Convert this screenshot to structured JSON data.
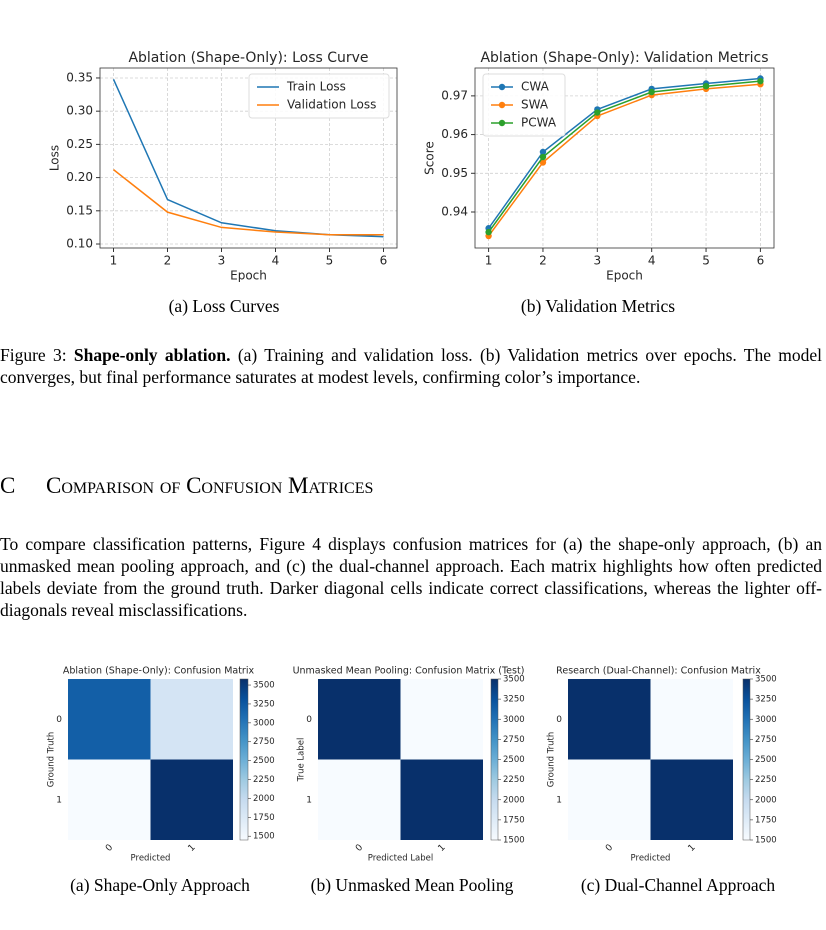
{
  "figure3": {
    "subcaptions": [
      "(a)  Loss Curves",
      "(b)  Validation Metrics"
    ],
    "caption": {
      "label": "Figure 3:",
      "bold": "Shape-only ablation.",
      "text": "(a) Training and validation loss. (b) Validation metrics over epochs. The model converges, but final performance saturates at modest levels, confirming color’s importance."
    }
  },
  "section": {
    "number": "C",
    "title": "Comparison of Confusion Matrices"
  },
  "paragraph": "To compare classification patterns, Figure 4 displays confusion matrices for (a) the shape-only approach, (b) an unmasked mean pooling approach, and (c) the dual-channel approach. Each matrix highlights how often predicted labels deviate from the ground truth. Darker diagonal cells indicate correct classifications, whereas the lighter off-diagonals reveal misclassifications.",
  "figure4": {
    "subcaptions": [
      "(a)  Shape-Only Approach",
      "(b)  Unmasked Mean Pooling",
      "(c)  Dual-Channel Approach"
    ]
  },
  "chart_data": [
    {
      "type": "line",
      "title": "Ablation (Shape-Only): Loss Curve",
      "xlabel": "Epoch",
      "ylabel": "Loss",
      "x": [
        1,
        2,
        3,
        4,
        5,
        6
      ],
      "xlim": [
        0.75,
        6.25
      ],
      "xticks": [
        1,
        2,
        3,
        4,
        5,
        6
      ],
      "ylim": [
        0.094,
        0.365
      ],
      "yticks": [
        0.1,
        0.15,
        0.2,
        0.25,
        0.3,
        0.35
      ],
      "yticklabels": [
        "0.10",
        "0.15",
        "0.20",
        "0.25",
        "0.30",
        "0.35"
      ],
      "grid": true,
      "markers": false,
      "legend": "upper right",
      "series": [
        {
          "name": "Train Loss",
          "color": "#1f77b4",
          "values": [
            0.348,
            0.167,
            0.132,
            0.12,
            0.114,
            0.111
          ]
        },
        {
          "name": "Validation Loss",
          "color": "#ff7f0e",
          "values": [
            0.212,
            0.148,
            0.125,
            0.118,
            0.114,
            0.114
          ]
        }
      ]
    },
    {
      "type": "line",
      "title": "Ablation (Shape-Only): Validation Metrics",
      "xlabel": "Epoch",
      "ylabel": "Score",
      "x": [
        1,
        2,
        3,
        4,
        5,
        6
      ],
      "xlim": [
        0.75,
        6.25
      ],
      "xticks": [
        1,
        2,
        3,
        4,
        5,
        6
      ],
      "ylim": [
        0.9307,
        0.9772
      ],
      "yticks": [
        0.94,
        0.95,
        0.96,
        0.97
      ],
      "grid": true,
      "markers": true,
      "legend": "upper left",
      "series": [
        {
          "name": "CWA",
          "color": "#1f77b4",
          "values": [
            0.9358,
            0.9555,
            0.9665,
            0.9718,
            0.9732,
            0.9745
          ]
        },
        {
          "name": "SWA",
          "color": "#ff7f0e",
          "values": [
            0.9338,
            0.9528,
            0.9648,
            0.9702,
            0.9718,
            0.973
          ]
        },
        {
          "name": "PCWA",
          "color": "#2ca02c",
          "values": [
            0.9348,
            0.9542,
            0.9657,
            0.971,
            0.9725,
            0.9738
          ]
        }
      ]
    },
    {
      "type": "heatmap",
      "title": "Ablation (Shape-Only): Confusion Matrix",
      "xlabel": "Predicted",
      "ylabel": "Ground Truth",
      "categories": [
        "0",
        "1"
      ],
      "values": [
        [
          3200,
          1830
        ],
        [
          1450,
          3580
        ]
      ],
      "colormap": "Blues",
      "clim": [
        1450,
        3580
      ],
      "cticks": [
        1500,
        1750,
        2000,
        2250,
        2500,
        2750,
        3000,
        3250,
        3500
      ]
    },
    {
      "type": "heatmap",
      "title": "Unmasked Mean Pooling: Confusion Matrix (Test)",
      "xlabel": "Predicted Label",
      "ylabel": "True Label",
      "categories": [
        "0",
        "1"
      ],
      "values": [
        [
          3500,
          1500
        ],
        [
          1500,
          3500
        ]
      ],
      "colormap": "Blues",
      "clim": [
        1500,
        3500
      ],
      "cticks": [
        1500,
        1750,
        2000,
        2250,
        2500,
        2750,
        3000,
        3250,
        3500
      ]
    },
    {
      "type": "heatmap",
      "title": "Research (Dual-Channel): Confusion Matrix",
      "xlabel": "Predicted",
      "ylabel": "Ground Truth",
      "categories": [
        "0",
        "1"
      ],
      "values": [
        [
          3500,
          1500
        ],
        [
          1500,
          3500
        ]
      ],
      "colormap": "Blues",
      "clim": [
        1500,
        3500
      ],
      "cticks": [
        1500,
        1750,
        2000,
        2250,
        2500,
        2750,
        3000,
        3250,
        3500
      ]
    }
  ]
}
